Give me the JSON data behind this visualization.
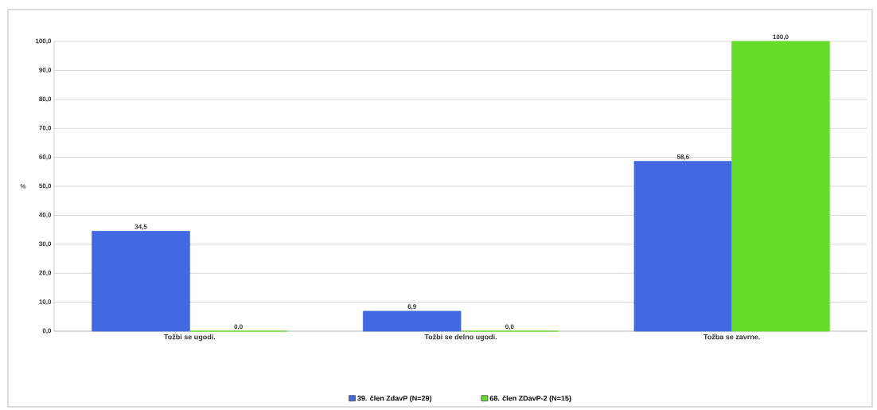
{
  "chart_data": {
    "type": "bar",
    "ylabel": "%",
    "categories": [
      "Tožbi se ugodi.",
      "Tožbi se delno ugodi.",
      "Tožba se zavrne."
    ],
    "series": [
      {
        "name": "39. člen ZdavP (N=29)",
        "color": "#4169e1",
        "values": [
          34.5,
          6.9,
          58.6
        ],
        "value_labels": [
          "34,5",
          "6,9",
          "58,6"
        ]
      },
      {
        "name": "68. člen ZDavP-2 (N=15)",
        "color": "#66dd2a",
        "values": [
          0.0,
          0.0,
          100.0
        ],
        "value_labels": [
          "0,0",
          "0,0",
          "100,0"
        ]
      }
    ],
    "ylim": [
      0,
      100
    ],
    "yticks": [
      {
        "value": 0,
        "label": "0,0"
      },
      {
        "value": 10,
        "label": "10,0"
      },
      {
        "value": 20,
        "label": "20,0"
      },
      {
        "value": 30,
        "label": "30,0"
      },
      {
        "value": 40,
        "label": "40,0"
      },
      {
        "value": 50,
        "label": "50,0"
      },
      {
        "value": 60,
        "label": "60,0"
      },
      {
        "value": 70,
        "label": "70,0"
      },
      {
        "value": 80,
        "label": "80,0"
      },
      {
        "value": 90,
        "label": "90,0"
      },
      {
        "value": 100,
        "label": "100,0"
      }
    ],
    "grid": "y",
    "legend": "bottom"
  }
}
